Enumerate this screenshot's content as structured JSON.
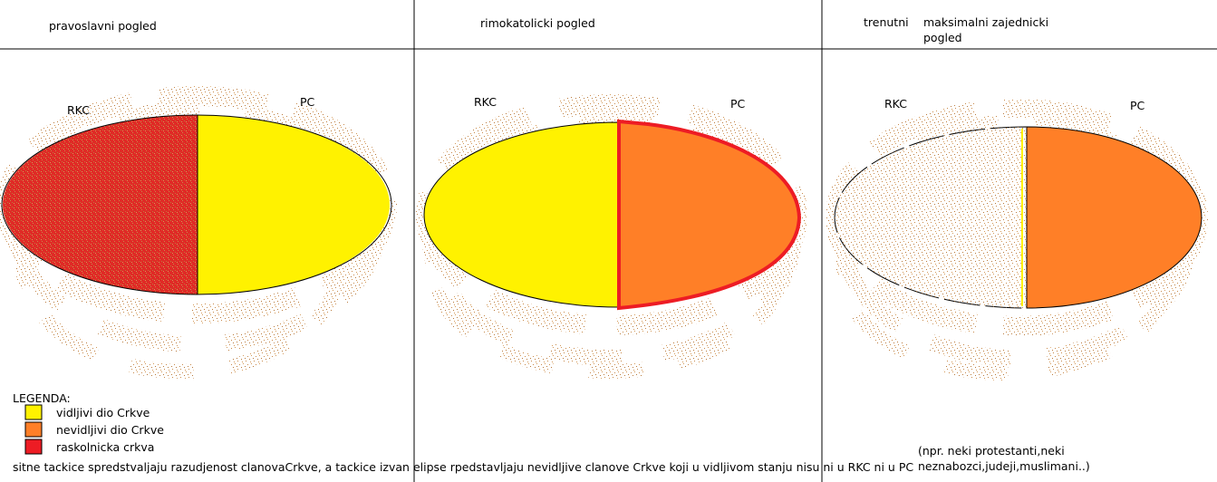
{
  "panels": [
    {
      "title": "pravoslavni pogled",
      "left_label": "RKC",
      "right_label": "PC"
    },
    {
      "title": "rimokatolicki pogled",
      "left_label": "RKC",
      "right_label": "PC"
    },
    {
      "title": "trenutni",
      "subtitle": "maksimalni zajednicki pogled",
      "left_label": "RKC",
      "right_label": "PC"
    }
  ],
  "legend": {
    "title": "LEGENDA:",
    "items": [
      {
        "label": "vidljivi dio Crkve",
        "color": "#fff200"
      },
      {
        "label": "nevidljivi dio Crkve",
        "color": "#ff7f27"
      },
      {
        "label": "raskolnicka crkva",
        "color": "#ed1c24"
      }
    ]
  },
  "footer": "sitne tackice spredstvaljaju razudjenost clanovaCrkve, a tackice izvan elipse rpedstavljaju nevidljive clanove Crkve koji u vidljivom stanju nisu ni u RKC ni u PC",
  "note": "(npr. neki protestanti,neki neznabozci,judeji,muslimani..)"
}
